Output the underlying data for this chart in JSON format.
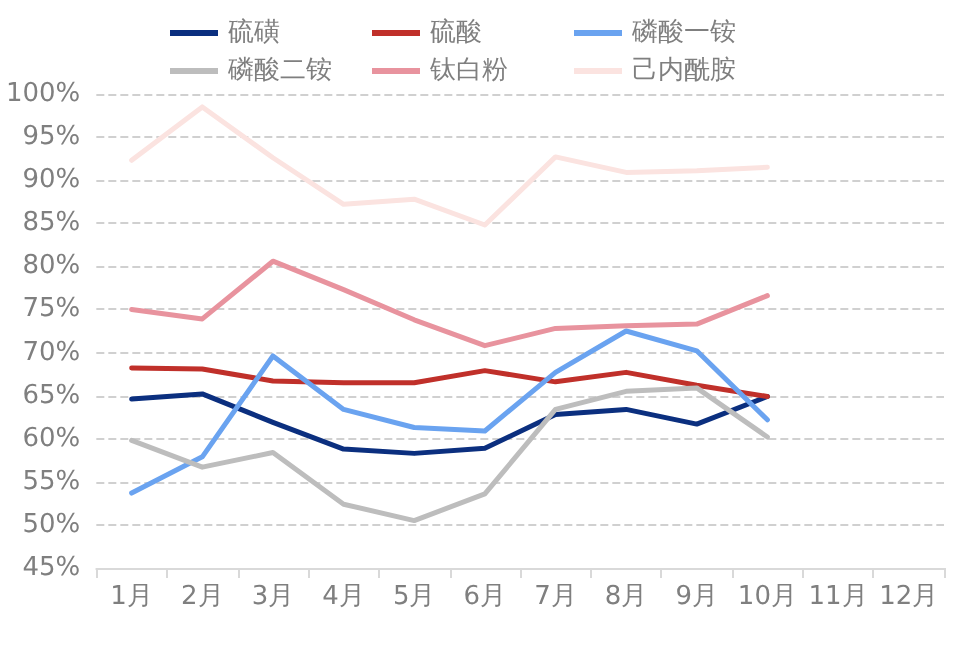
{
  "chart_data": {
    "type": "line",
    "categories": [
      "1月",
      "2月",
      "3月",
      "4月",
      "5月",
      "6月",
      "7月",
      "8月",
      "9月",
      "10月",
      "11月",
      "12月"
    ],
    "series": [
      {
        "name": "硫磺",
        "color": "#0b2f7f",
        "values": [
          64.6,
          65.2,
          61.9,
          58.8,
          58.3,
          58.9,
          62.8,
          63.4,
          61.7,
          64.9,
          null,
          null
        ]
      },
      {
        "name": "硫酸",
        "color": "#c0302a",
        "values": [
          68.2,
          68.1,
          66.7,
          66.5,
          66.5,
          67.9,
          66.6,
          67.7,
          66.2,
          64.9,
          null,
          null
        ]
      },
      {
        "name": "磷酸一铵",
        "color": "#6aa3f0",
        "values": [
          53.7,
          57.9,
          69.6,
          63.4,
          61.3,
          60.9,
          67.7,
          72.5,
          70.2,
          62.2,
          null,
          null
        ]
      },
      {
        "name": "磷酸二铵",
        "color": "#bdbdbd",
        "values": [
          59.8,
          56.7,
          58.4,
          52.4,
          50.5,
          53.6,
          63.4,
          65.5,
          65.9,
          60.2,
          null,
          null
        ]
      },
      {
        "name": "钛白粉",
        "color": "#e8939e",
        "values": [
          75.0,
          73.9,
          80.6,
          77.3,
          73.8,
          70.8,
          72.8,
          73.1,
          73.3,
          76.6,
          null,
          null
        ]
      },
      {
        "name": "己内酰胺",
        "color": "#fbe3e0",
        "values": [
          92.3,
          98.5,
          92.6,
          87.2,
          87.8,
          84.8,
          92.7,
          90.9,
          91.1,
          91.5,
          null,
          null
        ]
      }
    ],
    "ylim": [
      45,
      100
    ],
    "yticks": [
      {
        "value": 45,
        "label": "45%"
      },
      {
        "value": 50,
        "label": "50%"
      },
      {
        "value": 55,
        "label": "55%"
      },
      {
        "value": 60,
        "label": "60%"
      },
      {
        "value": 65,
        "label": "65%"
      },
      {
        "value": 70,
        "label": "70%"
      },
      {
        "value": 75,
        "label": "75%"
      },
      {
        "value": 80,
        "label": "80%"
      },
      {
        "value": 85,
        "label": "85%"
      },
      {
        "value": 90,
        "label": "90%"
      },
      {
        "value": 95,
        "label": "95%"
      },
      {
        "value": 100,
        "label": "100%"
      }
    ],
    "grid": "y",
    "legend": "top",
    "marker": "none",
    "line_style": "solid"
  }
}
